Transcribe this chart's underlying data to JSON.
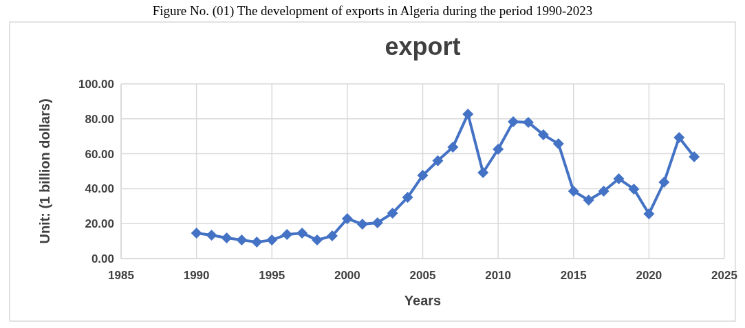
{
  "chart_data": {
    "type": "line",
    "title": "export",
    "xlabel": "Years",
    "ylabel": "Unit: (1 billion dollars)",
    "annotations": [
      "Figure No. (01) The development of exports in Algeria during the period 1990-2023"
    ],
    "x": [
      1990,
      1991,
      1992,
      1993,
      1994,
      1995,
      1996,
      1997,
      1998,
      1999,
      2000,
      2001,
      2002,
      2003,
      2004,
      2005,
      2006,
      2007,
      2008,
      2009,
      2010,
      2011,
      2012,
      2013,
      2014,
      2015,
      2016,
      2017,
      2018,
      2019,
      2020,
      2021,
      2022,
      2023
    ],
    "series": [
      {
        "color": "#4472c4",
        "values": [
          14.6,
          13.4,
          11.8,
          10.6,
          9.4,
          10.6,
          13.8,
          14.6,
          10.6,
          13,
          22.8,
          19.7,
          20.5,
          26,
          35,
          47.6,
          56,
          63.8,
          82.7,
          49.2,
          62.6,
          78.3,
          78,
          70.9,
          65.7,
          38.6,
          33.5,
          38.6,
          45.7,
          39.8,
          25.6,
          43.7,
          69.3,
          58.3
        ]
      }
    ],
    "xlim": [
      1985,
      2025
    ],
    "xticks": [
      1985,
      1990,
      1995,
      2000,
      2005,
      2010,
      2015,
      2020,
      2025
    ],
    "ylim": [
      0,
      100
    ],
    "yticks": [
      {
        "value": 0,
        "label": "0.00"
      },
      {
        "value": 20,
        "label": "20.00"
      },
      {
        "value": 40,
        "label": "40.00"
      },
      {
        "value": 60,
        "label": "60.00"
      },
      {
        "value": 80,
        "label": "80.00"
      },
      {
        "value": 100,
        "label": "100.00"
      }
    ],
    "grid": true,
    "marker": "diamond",
    "line_style": "solid"
  }
}
